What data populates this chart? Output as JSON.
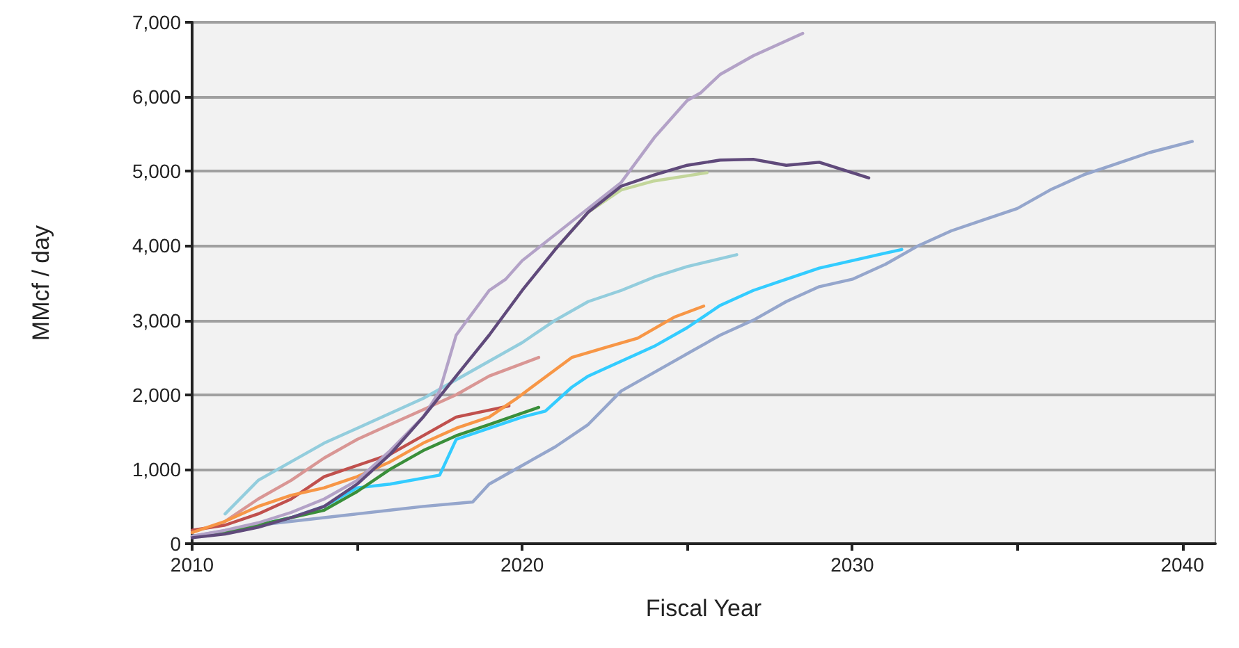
{
  "chart_data": {
    "type": "line",
    "xlabel": "Fiscal Year",
    "ylabel": "MMcf / day",
    "xlim": [
      2010,
      2041
    ],
    "xticks": [
      2010,
      {
        "value": 2015,
        "label": null
      },
      2020,
      {
        "value": 2025,
        "label": null
      },
      2030,
      {
        "value": 2035,
        "label": null
      },
      2040
    ],
    "ylim": [
      0,
      7000
    ],
    "yticks": [
      0,
      {
        "value": 1000,
        "label": "1,000"
      },
      {
        "value": 2000,
        "label": "2,000"
      },
      {
        "value": 3000,
        "label": "3,000"
      },
      {
        "value": 4000,
        "label": "4,000"
      },
      {
        "value": 5000,
        "label": "5,000"
      },
      {
        "value": 6000,
        "label": "6,000"
      },
      {
        "value": 7000,
        "label": "7,000"
      }
    ],
    "grid": "y",
    "marker": "none",
    "line_style": "solid",
    "series": [
      {
        "color": "#95a6cc",
        "x": [
          2010,
          2012,
          2014,
          2015,
          2016,
          2017,
          2018.5,
          2019,
          2020,
          2021,
          2022,
          2023,
          2024,
          2025,
          2026,
          2027,
          2028,
          2029,
          2030,
          2031,
          2032,
          2033,
          2034,
          2035,
          2036,
          2037,
          2038,
          2039,
          2040.3
        ],
        "values": [
          100,
          250,
          350,
          400,
          450,
          500,
          560,
          800,
          1050,
          1300,
          1600,
          2050,
          2300,
          2550,
          2800,
          3000,
          3250,
          3450,
          3550,
          3750,
          4000,
          4200,
          4350,
          4500,
          4750,
          4950,
          5100,
          5250,
          5400
        ]
      },
      {
        "color": "#33ccff",
        "x": [
          2012,
          2013,
          2014,
          2015,
          2016,
          2017.5,
          2018,
          2019,
          2020,
          2020.7,
          2021.5,
          2022,
          2023,
          2024,
          2025,
          2026,
          2027,
          2028,
          2029,
          2030,
          2031.5
        ],
        "values": [
          250,
          350,
          500,
          750,
          800,
          920,
          1400,
          1550,
          1700,
          1780,
          2100,
          2250,
          2450,
          2650,
          2900,
          3200,
          3400,
          3550,
          3700,
          3800,
          3950
        ]
      },
      {
        "color": "#93cddd",
        "x": [
          2011,
          2012,
          2013,
          2014,
          2015,
          2016,
          2017,
          2018,
          2019,
          2020,
          2021,
          2022,
          2023,
          2024,
          2025,
          2026.5
        ],
        "values": [
          400,
          850,
          1100,
          1350,
          1550,
          1750,
          1950,
          2200,
          2450,
          2700,
          3000,
          3250,
          3400,
          3580,
          3720,
          3880
        ]
      },
      {
        "color": "#d99694",
        "x": [
          2011,
          2012,
          2013,
          2014,
          2015,
          2016,
          2017,
          2018,
          2019,
          2020.5
        ],
        "values": [
          300,
          600,
          850,
          1150,
          1400,
          1600,
          1800,
          2000,
          2250,
          2500
        ]
      },
      {
        "color": "#c0504d",
        "x": [
          2010,
          2011,
          2012,
          2013,
          2014,
          2015,
          2016,
          2017,
          2018,
          2019.6
        ],
        "values": [
          180,
          250,
          400,
          600,
          900,
          1050,
          1200,
          1450,
          1700,
          1850
        ]
      },
      {
        "color": "#f79646",
        "x": [
          2010,
          2011,
          2012,
          2013,
          2014,
          2015,
          2016,
          2017,
          2018,
          2019,
          2019.8,
          2021.5,
          2022.5,
          2023.5,
          2024.6,
          2025.5
        ],
        "values": [
          150,
          300,
          500,
          650,
          750,
          900,
          1100,
          1350,
          1550,
          1700,
          1940,
          2500,
          2630,
          2760,
          3040,
          3190
        ]
      },
      {
        "color": "#3a8f3a",
        "x": [
          2010,
          2011,
          2012,
          2013,
          2014,
          2015,
          2016,
          2017,
          2018,
          2019,
          2020.5
        ],
        "values": [
          100,
          150,
          250,
          350,
          450,
          700,
          1000,
          1250,
          1450,
          1600,
          1830
        ]
      },
      {
        "color": "#c3d69b",
        "x": [
          2021,
          2022,
          2023,
          2024,
          2025.6
        ],
        "values": [
          3950,
          4450,
          4750,
          4870,
          4980
        ]
      },
      {
        "color": "#b3a2c7",
        "x": [
          2010,
          2011,
          2012,
          2013,
          2014,
          2015,
          2016,
          2017,
          2017.5,
          2018,
          2019,
          2019.5,
          2020,
          2021,
          2022,
          2023,
          2024,
          2025,
          2025.4,
          2026,
          2027,
          2028.5
        ],
        "values": [
          100,
          180,
          280,
          420,
          600,
          850,
          1250,
          1700,
          2050,
          2800,
          3400,
          3550,
          3800,
          4150,
          4500,
          4850,
          5450,
          5950,
          6050,
          6300,
          6550,
          6850
        ]
      },
      {
        "color": "#604a7b",
        "x": [
          2010,
          2011,
          2012,
          2013,
          2014,
          2015,
          2016,
          2017,
          2018,
          2019,
          2020,
          2021,
          2022,
          2023,
          2024,
          2025,
          2026,
          2027,
          2028,
          2029,
          2030.5
        ],
        "values": [
          80,
          130,
          220,
          350,
          500,
          800,
          1200,
          1700,
          2250,
          2800,
          3400,
          3950,
          4450,
          4800,
          4950,
          5080,
          5150,
          5160,
          5080,
          5120,
          4910
        ]
      }
    ]
  }
}
